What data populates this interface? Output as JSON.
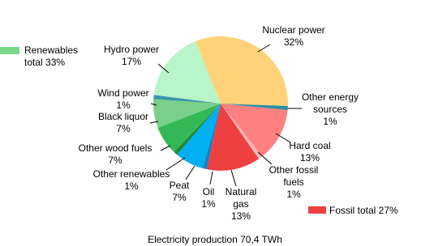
{
  "chart_data": {
    "type": "pie",
    "categories": [
      "Nuclear power",
      "Other energy sources",
      "Hard coal",
      "Other fossil fuels",
      "Natural gas",
      "Oil",
      "Peat",
      "Other renewables",
      "Other wood fuels",
      "Black liquor",
      "Wind power",
      "Hydro power"
    ],
    "values": [
      32,
      1,
      13,
      1,
      13,
      1,
      7,
      1,
      7,
      7,
      1,
      17
    ],
    "value_labels": [
      "32%",
      "1%",
      "13%",
      "1%",
      "13%",
      "1%",
      "7%",
      "1%",
      "7%",
      "7%",
      "1%",
      "17%"
    ],
    "colors": [
      "#ffd27a",
      "#2f8fa0",
      "#ff8080",
      "#ffb8b8",
      "#ee4040",
      "#1a7fc8",
      "#00b0f0",
      "#1f8a3a",
      "#33b855",
      "#78d08a",
      "#3a95a8",
      "#b8f5c8"
    ],
    "legend": [
      {
        "label": "Renewables total 33%",
        "color": "#78d88a"
      },
      {
        "label": "Fossil total 27%",
        "color": "#ee4040"
      }
    ],
    "caption": "Electricity production 70,4 TWh"
  }
}
